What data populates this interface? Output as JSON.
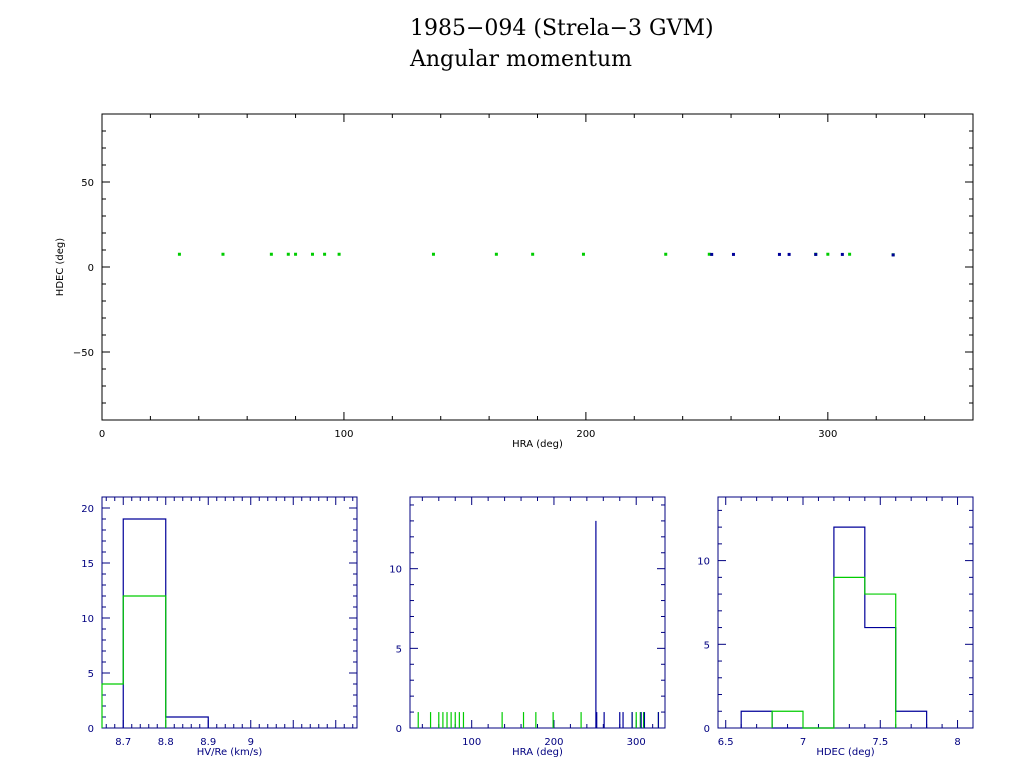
{
  "title": "1985−094 (Strela−3 GVM)",
  "subtitle": "Angular momentum",
  "colors": {
    "axis": "#000000",
    "panel_axis": "#000080",
    "green": "#00cc00",
    "blue": "#000099"
  },
  "chart_data": [
    {
      "type": "scatter",
      "xlabel": "HRA (deg)",
      "ylabel": "HDEC (deg)",
      "xlim": [
        0,
        360
      ],
      "ylim": [
        -90,
        90
      ],
      "x_ticks": [
        "0",
        "100",
        "200",
        "300"
      ],
      "y_ticks": [
        "50",
        "0",
        "−50"
      ],
      "series": [
        {
          "color": "green",
          "x": [
            32,
            50,
            70,
            77,
            80,
            87,
            92,
            98,
            137,
            163,
            178,
            199,
            233,
            251,
            295,
            300,
            309,
            327
          ],
          "y": [
            7.5,
            7.5,
            7.5,
            7.5,
            7.5,
            7.5,
            7.5,
            7.5,
            7.5,
            7.5,
            7.5,
            7.5,
            7.5,
            7.5,
            7.5,
            7.5,
            7.5,
            7.2
          ]
        },
        {
          "color": "blue",
          "x": [
            252,
            261,
            280,
            284,
            295,
            306,
            327
          ],
          "y": [
            7.4,
            7.4,
            7.4,
            7.4,
            7.4,
            7.4,
            7.1
          ]
        }
      ]
    },
    {
      "type": "histogram",
      "xlabel": "HV/Re (km/s)",
      "ylabel": "",
      "xlim": [
        8.65,
        9.25
      ],
      "ylim": [
        0,
        21
      ],
      "x_ticks": [
        "8.7",
        "8.8",
        "8.9",
        "9"
      ],
      "y_ticks": [
        "0",
        "5",
        "10",
        "15",
        "20"
      ],
      "series": [
        {
          "color": "blue",
          "bins": [
            [
              8.7,
              8.8,
              19
            ],
            [
              8.8,
              8.9,
              1
            ]
          ]
        },
        {
          "color": "green",
          "bins": [
            [
              8.6,
              8.7,
              4
            ],
            [
              8.7,
              8.8,
              12
            ]
          ]
        }
      ]
    },
    {
      "type": "histogram",
      "xlabel": "HRA (deg)",
      "ylabel": "",
      "xlim": [
        25,
        335
      ],
      "ylim": [
        0,
        14.5
      ],
      "x_ticks": [
        "100",
        "200",
        "300"
      ],
      "y_ticks": [
        "0",
        "5",
        "10"
      ],
      "series": [
        {
          "color": "green",
          "spikes": [
            [
              35,
              1
            ],
            [
              50,
              1
            ],
            [
              60,
              1
            ],
            [
              65,
              1
            ],
            [
              70,
              1
            ],
            [
              75,
              1
            ],
            [
              80,
              1
            ],
            [
              85,
              1
            ],
            [
              90,
              1
            ],
            [
              137,
              1
            ],
            [
              163,
              1
            ],
            [
              178,
              1
            ],
            [
              199,
              1
            ],
            [
              233,
              1
            ],
            [
              295,
              1
            ],
            [
              300,
              1
            ],
            [
              305,
              1
            ],
            [
              309,
              1
            ],
            [
              327,
              1
            ]
          ]
        },
        {
          "color": "blue",
          "spikes": [
            [
              251,
              13
            ],
            [
              252,
              1
            ],
            [
              261,
              1
            ],
            [
              280,
              1
            ],
            [
              284,
              1
            ],
            [
              295,
              1
            ],
            [
              306,
              1
            ],
            [
              310,
              1
            ],
            [
              327,
              1
            ]
          ]
        }
      ]
    },
    {
      "type": "histogram",
      "xlabel": "HDEC (deg)",
      "ylabel": "",
      "xlim": [
        6.45,
        8.1
      ],
      "ylim": [
        0,
        13.8
      ],
      "x_ticks": [
        "6.5",
        "7",
        "7.5",
        "8"
      ],
      "y_ticks": [
        "0",
        "5",
        "10"
      ],
      "series": [
        {
          "color": "blue",
          "bins": [
            [
              6.6,
              6.8,
              1
            ],
            [
              6.8,
              7.0,
              0
            ],
            [
              7.0,
              7.2,
              0
            ],
            [
              7.2,
              7.4,
              12
            ],
            [
              7.4,
              7.6,
              6
            ],
            [
              7.6,
              7.8,
              1
            ]
          ]
        },
        {
          "color": "green",
          "bins": [
            [
              6.8,
              7.0,
              1
            ],
            [
              7.0,
              7.2,
              0
            ],
            [
              7.2,
              7.4,
              9
            ],
            [
              7.4,
              7.6,
              8
            ]
          ]
        }
      ]
    }
  ]
}
